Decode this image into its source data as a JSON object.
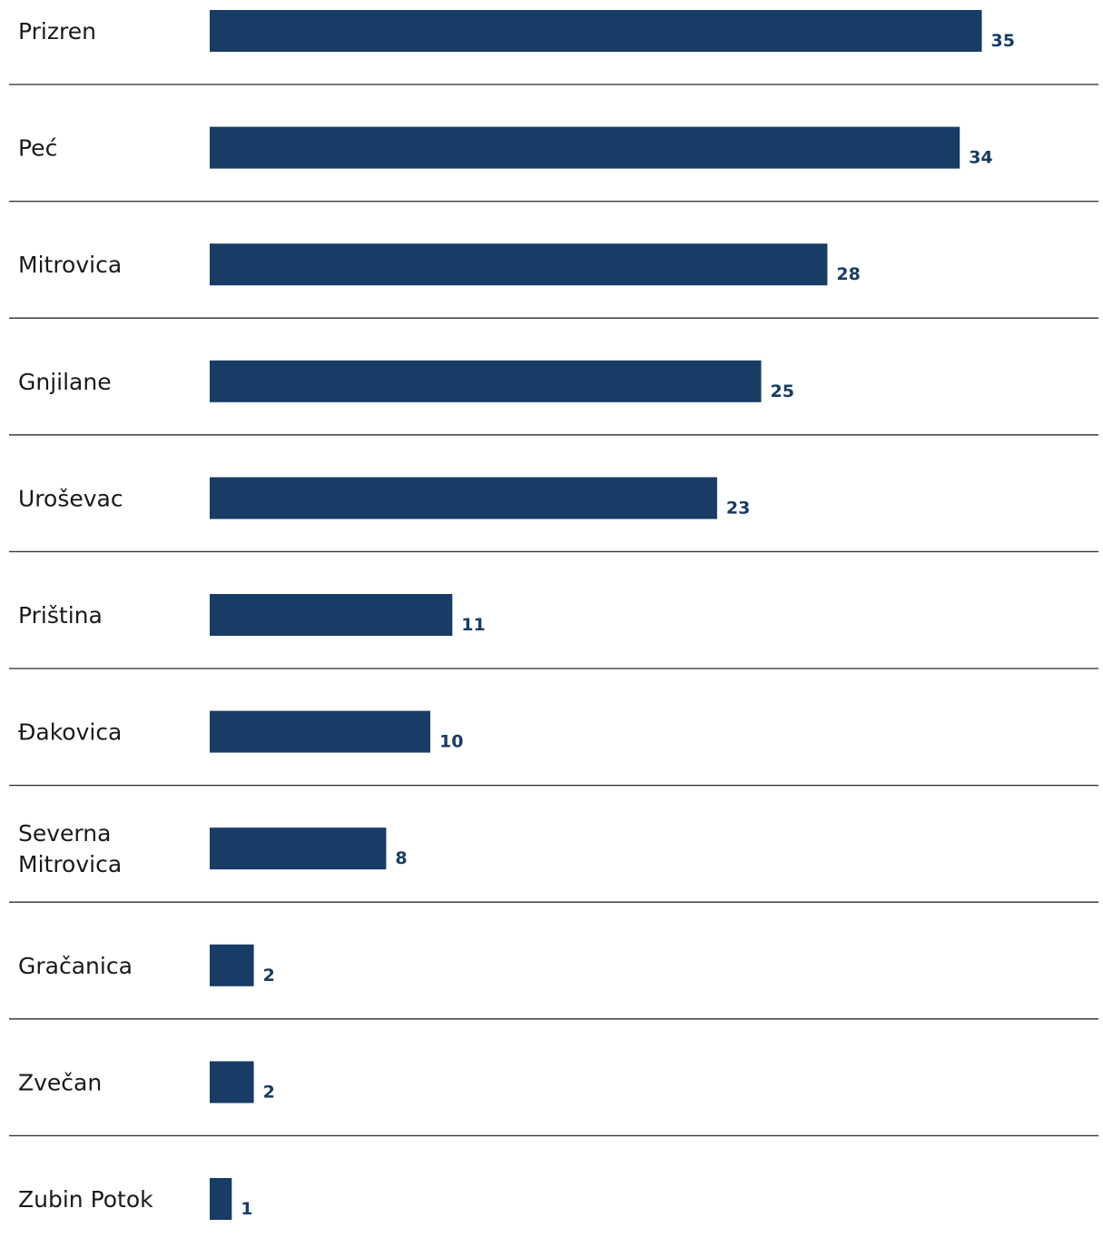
{
  "chart_data": {
    "type": "bar",
    "orientation": "horizontal",
    "categories": [
      [
        "Prizren"
      ],
      [
        "Peć"
      ],
      [
        "Mitrovica"
      ],
      [
        "Gnjilane"
      ],
      [
        "Uroševac"
      ],
      [
        "Priština"
      ],
      [
        "Đakovica"
      ],
      [
        "Severna",
        "Mitrovica"
      ],
      [
        "Gračanica"
      ],
      [
        "Zvečan"
      ],
      [
        "Zubin Potok"
      ]
    ],
    "values": [
      35,
      34,
      28,
      25,
      23,
      11,
      10,
      8,
      2,
      2,
      1
    ],
    "value_labels": [
      "35",
      "34",
      "28",
      "25",
      "23",
      "11",
      "10",
      "8",
      "2",
      "2",
      "1"
    ],
    "title": "",
    "xlabel": "",
    "ylabel": "",
    "grid": false,
    "row_separators": true,
    "colors": {
      "bar": "#173c66",
      "value_label": "#173c66",
      "separator": "#2a2a2a"
    }
  }
}
